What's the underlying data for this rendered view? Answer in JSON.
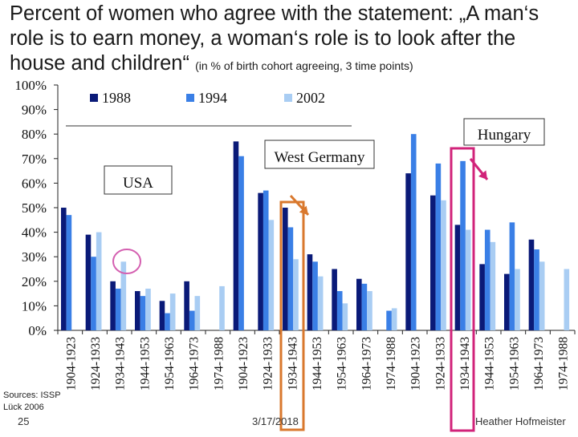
{
  "title": {
    "main": "Percent of women who agree with the statement: „A man‘s role is to earn money, a woman‘s role is to look after the house and children“",
    "sub": "(in % of birth cohort agreeing, 3 time points)"
  },
  "footer": {
    "sources_line1": "Sources: ISSP",
    "sources_line2": "Lück 2006",
    "slide_number": "25",
    "date": "3/17/2018",
    "author": "Heather Hofmeister"
  },
  "colors": {
    "s1988": "#0a1a78",
    "s1994": "#3a7fe6",
    "s2002": "#a9cdf3",
    "highlight_circle": "#d45fb0",
    "highlight_orange": "#d9782d",
    "highlight_magenta": "#d1237a"
  },
  "chart_data": {
    "type": "bar",
    "title": "",
    "xlabel": "",
    "ylabel": "",
    "ylim": [
      0,
      100
    ],
    "y_ticks": [
      "0%",
      "10%",
      "20%",
      "30%",
      "40%",
      "50%",
      "60%",
      "70%",
      "80%",
      "90%",
      "100%"
    ],
    "grid": false,
    "legend": {
      "position": "top-left",
      "entries": [
        "1988",
        "1994",
        "2002"
      ]
    },
    "groups": [
      {
        "label": "USA",
        "categories": [
          "1904-1923",
          "1924-1933",
          "1934-1943",
          "1944-1953",
          "1954-1963",
          "1964-1973",
          "1974-1988"
        ]
      },
      {
        "label": "West Germany",
        "categories": [
          "1904-1923",
          "1924-1933",
          "1934-1943",
          "1944-1953",
          "1954-1963",
          "1964-1973",
          "1974-1988"
        ]
      },
      {
        "label": "Hungary",
        "categories": [
          "1904-1923",
          "1924-1933",
          "1934-1943",
          "1944-1953",
          "1954-1963",
          "1964-1973",
          "1974-1988"
        ]
      }
    ],
    "categories": [
      "1904-1923",
      "1924-1933",
      "1934-1943",
      "1944-1953",
      "1954-1963",
      "1964-1973",
      "1974-1988",
      "1904-1923",
      "1924-1933",
      "1934-1943",
      "1944-1953",
      "1954-1963",
      "1964-1973",
      "1974-1988",
      "1904-1923",
      "1924-1933",
      "1934-1943",
      "1944-1953",
      "1954-1963",
      "1964-1973",
      "1974-1988"
    ],
    "series": [
      {
        "name": "1988",
        "values": [
          50,
          39,
          20,
          16,
          12,
          20,
          null,
          77,
          56,
          50,
          31,
          25,
          21,
          null,
          64,
          55,
          43,
          27,
          23,
          37,
          null
        ]
      },
      {
        "name": "1994",
        "values": [
          47,
          30,
          17,
          14,
          7,
          8,
          null,
          71,
          57,
          42,
          28,
          16,
          19,
          8,
          80,
          68,
          69,
          41,
          44,
          33,
          null
        ]
      },
      {
        "name": "2002",
        "values": [
          null,
          40,
          28,
          17,
          15,
          14,
          18,
          null,
          45,
          29,
          22,
          11,
          16,
          9,
          null,
          53,
          41,
          36,
          25,
          28,
          25
        ]
      }
    ]
  }
}
